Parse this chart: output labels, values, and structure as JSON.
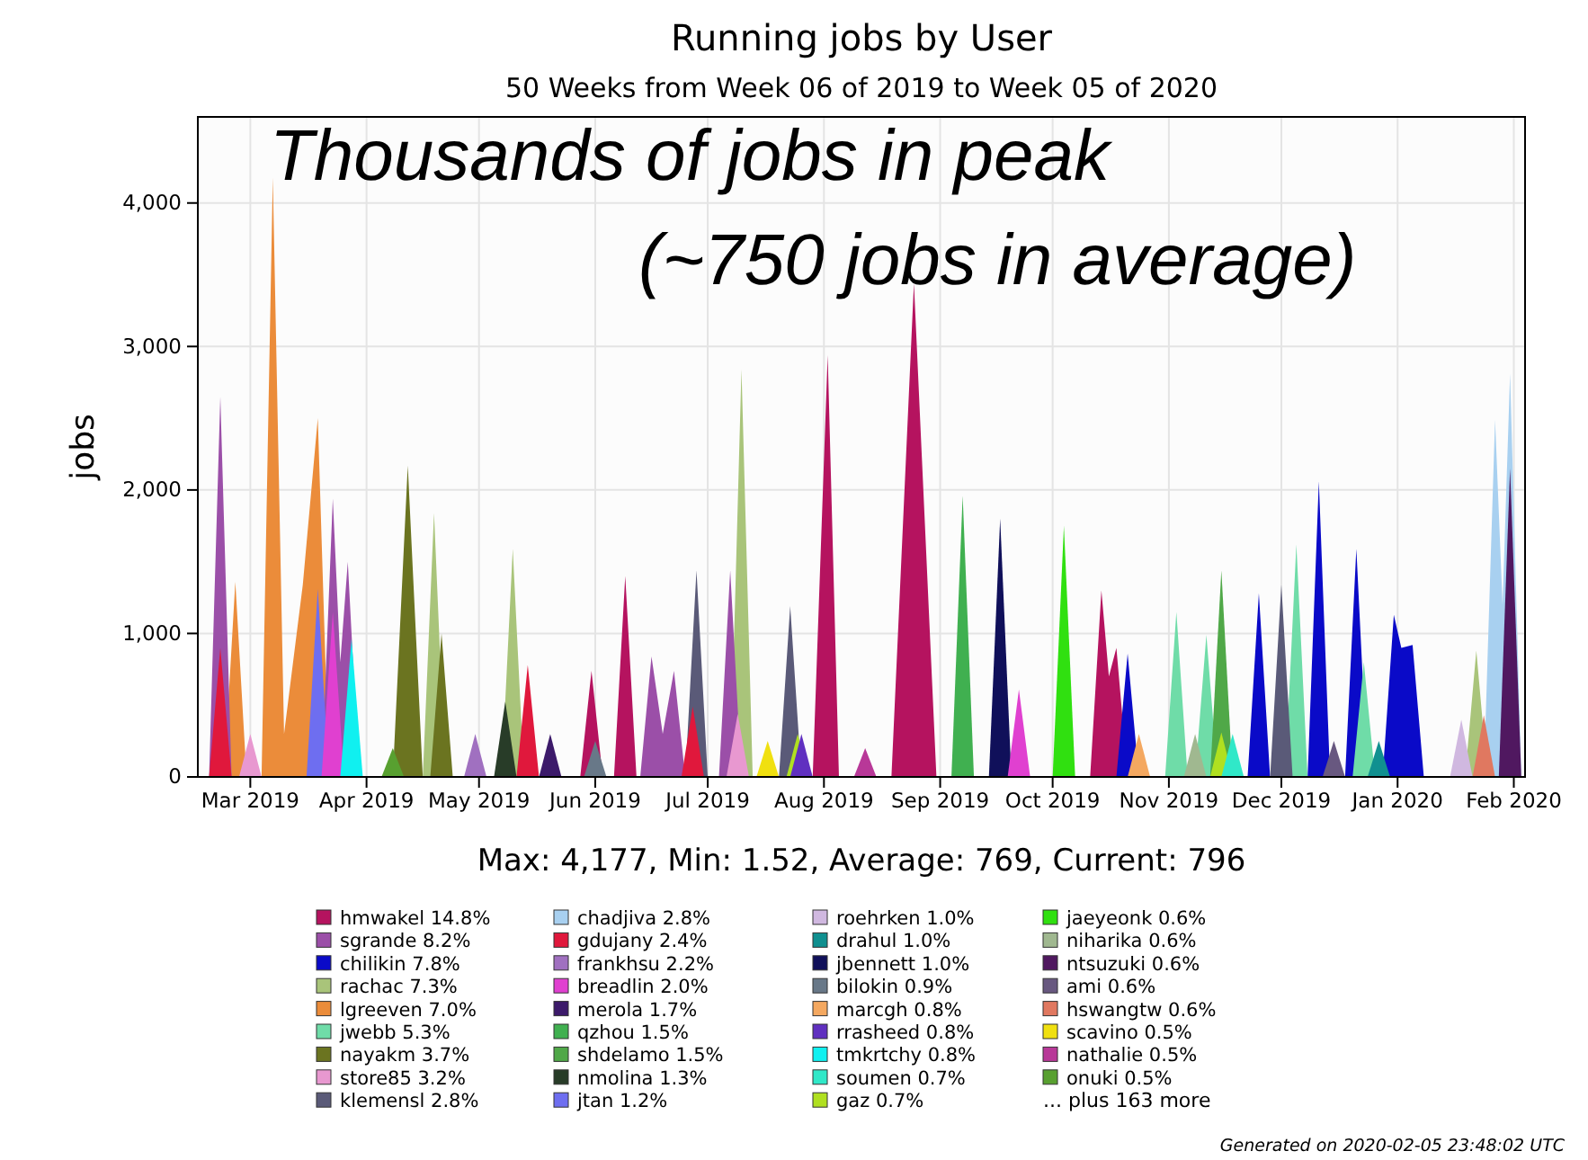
{
  "chart_data": {
    "type": "area",
    "title": "Running jobs by User",
    "subtitle": "50 Weeks from Week 06 of 2019 to Week 05 of 2020",
    "ylabel": "jobs",
    "annotations": [
      "Thousands of jobs in peak",
      "(~750 jobs in average)",
      "Max: 4,177, Min: 1.52, Average: 769, Current: 796",
      "... plus 163 more",
      "Generated on 2020-02-05 23:48:02 UTC"
    ],
    "xlim": [
      "2019-02-15",
      "2020-02-04"
    ],
    "xticks": [
      {
        "value": "2019-03-01",
        "label": "Mar 2019"
      },
      {
        "value": "2019-04-01",
        "label": "Apr 2019"
      },
      {
        "value": "2019-05-01",
        "label": "May 2019"
      },
      {
        "value": "2019-06-01",
        "label": "Jun 2019"
      },
      {
        "value": "2019-07-01",
        "label": "Jul 2019"
      },
      {
        "value": "2019-08-01",
        "label": "Aug 2019"
      },
      {
        "value": "2019-09-01",
        "label": "Sep 2019"
      },
      {
        "value": "2019-10-01",
        "label": "Oct 2019"
      },
      {
        "value": "2019-11-01",
        "label": "Nov 2019"
      },
      {
        "value": "2019-12-01",
        "label": "Dec 2019"
      },
      {
        "value": "2020-01-01",
        "label": "Jan 2020"
      },
      {
        "value": "2020-02-01",
        "label": "Feb 2020"
      }
    ],
    "ylim": [
      0,
      4600
    ],
    "yticks": [
      0,
      {
        "value": 1000,
        "label": "1,000"
      },
      {
        "value": 2000,
        "label": "2,000"
      },
      {
        "value": 3000,
        "label": "3,000"
      },
      {
        "value": 4000,
        "label": "4,000"
      }
    ],
    "grid": true,
    "legend": "bottom",
    "series": [
      {
        "name": "hmwakel 14.8%",
        "color": "#b5135f",
        "x": [
          "2019-05-28",
          "2019-05-31",
          "2019-06-03",
          "2019-06-06",
          "2019-06-09",
          "2019-06-12",
          "2019-07-29",
          "2019-08-02",
          "2019-08-05",
          "2019-08-19",
          "2019-08-25",
          "2019-08-31",
          "2019-10-11",
          "2019-10-14",
          "2019-10-16",
          "2019-10-18",
          "2019-10-21"
        ],
        "values": [
          0,
          740,
          0,
          0,
          1400,
          0,
          0,
          2940,
          0,
          0,
          3440,
          0,
          0,
          1300,
          700,
          900,
          0
        ]
      },
      {
        "name": "sgrande 8.2%",
        "color": "#9b4fa8",
        "x": [
          "2019-02-18",
          "2019-02-21",
          "2019-02-24",
          "2019-03-20",
          "2019-03-23",
          "2019-03-25",
          "2019-03-27",
          "2019-03-30",
          "2019-06-13",
          "2019-06-16",
          "2019-06-19",
          "2019-06-22",
          "2019-06-25",
          "2019-07-04",
          "2019-07-07",
          "2019-07-10"
        ],
        "values": [
          0,
          2650,
          0,
          0,
          1940,
          800,
          1500,
          0,
          0,
          840,
          300,
          740,
          0,
          0,
          1440,
          0
        ]
      },
      {
        "name": "chilikin 7.8%",
        "color": "#0a0ac8",
        "x": [
          "2019-10-18",
          "2019-10-21",
          "2019-10-24",
          "2019-11-22",
          "2019-11-25",
          "2019-11-28",
          "2019-12-08",
          "2019-12-11",
          "2019-12-14",
          "2019-12-18",
          "2019-12-21",
          "2019-12-24",
          "2019-12-28",
          "2019-12-31",
          "2020-01-02",
          "2020-01-05",
          "2020-01-08"
        ],
        "values": [
          0,
          860,
          0,
          0,
          1280,
          0,
          0,
          2060,
          0,
          0,
          1590,
          0,
          0,
          1130,
          900,
          920,
          0
        ]
      },
      {
        "name": "rachac 7.3%",
        "color": "#a9c47a",
        "x": [
          "2019-04-16",
          "2019-04-19",
          "2019-04-22",
          "2019-05-07",
          "2019-05-10",
          "2019-05-13",
          "2019-07-07",
          "2019-07-10",
          "2019-07-13",
          "2020-01-19",
          "2020-01-22",
          "2020-01-25"
        ],
        "values": [
          0,
          1840,
          0,
          0,
          1590,
          0,
          0,
          2840,
          0,
          0,
          880,
          0
        ]
      },
      {
        "name": "lgreeven 7.0%",
        "color": "#eb8c3a",
        "x": [
          "2019-02-22",
          "2019-02-25",
          "2019-02-28",
          "2019-03-04",
          "2019-03-07",
          "2019-03-10",
          "2019-03-15",
          "2019-03-19",
          "2019-03-22"
        ],
        "values": [
          0,
          1360,
          0,
          0,
          4177,
          300,
          1340,
          2500,
          0
        ]
      },
      {
        "name": "jwebb 5.3%",
        "color": "#6fdca8",
        "x": [
          "2019-10-31",
          "2019-11-03",
          "2019-11-06",
          "2019-11-08",
          "2019-11-11",
          "2019-11-14",
          "2019-12-02",
          "2019-12-05",
          "2019-12-08",
          "2019-12-20",
          "2019-12-23",
          "2019-12-26"
        ],
        "values": [
          0,
          1150,
          0,
          0,
          990,
          0,
          0,
          1620,
          0,
          0,
          800,
          0
        ]
      },
      {
        "name": "nayakm 3.7%",
        "color": "#6b7420",
        "x": [
          "2019-04-08",
          "2019-04-12",
          "2019-04-16",
          "2019-04-18",
          "2019-04-21",
          "2019-04-24"
        ],
        "values": [
          0,
          2170,
          0,
          0,
          1000,
          0
        ]
      },
      {
        "name": "store85 3.2%",
        "color": "#e898d0",
        "x": [
          "2019-02-26",
          "2019-03-01",
          "2019-03-04",
          "2019-07-06",
          "2019-07-09",
          "2019-07-12"
        ],
        "values": [
          0,
          300,
          0,
          0,
          440,
          0
        ]
      },
      {
        "name": "klemensl 2.8%",
        "color": "#5a5a78",
        "x": [
          "2019-06-25",
          "2019-06-28",
          "2019-07-01",
          "2019-07-20",
          "2019-07-23",
          "2019-07-26",
          "2019-11-28",
          "2019-12-01",
          "2019-12-04"
        ],
        "values": [
          0,
          1440,
          0,
          0,
          1190,
          0,
          0,
          1340,
          0
        ]
      },
      {
        "name": "chadjiva 2.8%",
        "color": "#a8d0f0",
        "x": [
          "2020-01-24",
          "2020-01-27",
          "2020-01-29",
          "2020-01-31",
          "2020-02-03"
        ],
        "values": [
          0,
          2490,
          1200,
          2810,
          0
        ]
      },
      {
        "name": "gdujany 2.4%",
        "color": "#e0183c",
        "x": [
          "2019-02-18",
          "2019-02-21",
          "2019-02-24",
          "2019-05-11",
          "2019-05-14",
          "2019-05-17",
          "2019-06-24",
          "2019-06-27",
          "2019-06-30"
        ],
        "values": [
          0,
          900,
          0,
          0,
          780,
          0,
          0,
          490,
          0
        ]
      },
      {
        "name": "frankhsu 2.2%",
        "color": "#a070c0",
        "x": [
          "2019-04-27",
          "2019-04-30",
          "2019-05-03"
        ],
        "values": [
          0,
          300,
          0
        ]
      },
      {
        "name": "breadlin 2.0%",
        "color": "#e040d0",
        "x": [
          "2019-03-20",
          "2019-03-23",
          "2019-03-26",
          "2019-09-19",
          "2019-09-22",
          "2019-09-25"
        ],
        "values": [
          0,
          1150,
          0,
          0,
          610,
          0
        ]
      },
      {
        "name": "merola 1.7%",
        "color": "#3c1a6a",
        "x": [
          "2019-05-17",
          "2019-05-20",
          "2019-05-23"
        ],
        "values": [
          0,
          300,
          0
        ]
      },
      {
        "name": "qzhou 1.5%",
        "color": "#40b050",
        "x": [
          "2019-09-04",
          "2019-09-07",
          "2019-09-10"
        ],
        "values": [
          0,
          1960,
          0
        ]
      },
      {
        "name": "shdelamo 1.5%",
        "color": "#50a848",
        "x": [
          "2019-11-12",
          "2019-11-15",
          "2019-11-18"
        ],
        "values": [
          0,
          1440,
          0
        ]
      },
      {
        "name": "nmolina 1.3%",
        "color": "#283c28",
        "x": [
          "2019-05-05",
          "2019-05-08",
          "2019-05-11"
        ],
        "values": [
          0,
          525,
          0
        ]
      },
      {
        "name": "jtan 1.2%",
        "color": "#6e6ef0",
        "x": [
          "2019-03-16",
          "2019-03-19",
          "2019-03-22"
        ],
        "values": [
          0,
          1310,
          0
        ]
      },
      {
        "name": "roehrken 1.0%",
        "color": "#d0b8e0",
        "x": [
          "2020-01-15",
          "2020-01-18",
          "2020-01-21"
        ],
        "values": [
          0,
          400,
          0
        ]
      },
      {
        "name": "drahul 1.0%",
        "color": "#109090",
        "x": [
          "2019-12-24",
          "2019-12-27",
          "2019-12-30"
        ],
        "values": [
          0,
          250,
          0
        ]
      },
      {
        "name": "jbennett 1.0%",
        "color": "#10105a",
        "x": [
          "2019-09-14",
          "2019-09-17",
          "2019-09-20"
        ],
        "values": [
          0,
          1800,
          0
        ]
      },
      {
        "name": "bilokin 0.9%",
        "color": "#687888",
        "x": [
          "2019-05-29",
          "2019-06-01",
          "2019-06-04"
        ],
        "values": [
          0,
          250,
          0
        ]
      },
      {
        "name": "marcgh 0.8%",
        "color": "#f4a860",
        "x": [
          "2019-10-21",
          "2019-10-24",
          "2019-10-27"
        ],
        "values": [
          0,
          300,
          0
        ]
      },
      {
        "name": "rrasheed 0.8%",
        "color": "#6030c0",
        "x": [
          "2019-07-23",
          "2019-07-26",
          "2019-07-29"
        ],
        "values": [
          0,
          300,
          0
        ]
      },
      {
        "name": "tmkrtchy 0.8%",
        "color": "#10f0f0",
        "x": [
          "2019-03-25",
          "2019-03-28",
          "2019-03-31"
        ],
        "values": [
          0,
          960,
          0
        ]
      },
      {
        "name": "soumen 0.7%",
        "color": "#30e8c8",
        "x": [
          "2019-11-15",
          "2019-11-18",
          "2019-11-21"
        ],
        "values": [
          0,
          300,
          0
        ]
      },
      {
        "name": "gaz 0.7%",
        "color": "#b0e020",
        "x": [
          "2019-07-22",
          "2019-07-25",
          "2019-07-28",
          "2019-11-12",
          "2019-11-15",
          "2019-11-18"
        ],
        "values": [
          0,
          300,
          0,
          0,
          310,
          0
        ]
      },
      {
        "name": "jaeyeonk 0.6%",
        "color": "#30e010",
        "x": [
          "2019-10-01",
          "2019-10-04",
          "2019-10-07"
        ],
        "values": [
          0,
          1750,
          0
        ]
      },
      {
        "name": "niharika 0.6%",
        "color": "#a0b890",
        "x": [
          "2019-11-05",
          "2019-11-08",
          "2019-11-11"
        ],
        "values": [
          0,
          300,
          0
        ]
      },
      {
        "name": "ntsuzuki 0.6%",
        "color": "#501860",
        "x": [
          "2020-01-28",
          "2020-01-31",
          "2020-02-03"
        ],
        "values": [
          0,
          2150,
          0
        ]
      },
      {
        "name": "ami 0.6%",
        "color": "#685880",
        "x": [
          "2019-12-12",
          "2019-12-15",
          "2019-12-18"
        ],
        "values": [
          0,
          250,
          0
        ]
      },
      {
        "name": "hswangtw 0.6%",
        "color": "#e07860",
        "x": [
          "2020-01-21",
          "2020-01-24",
          "2020-01-27"
        ],
        "values": [
          0,
          430,
          0
        ]
      },
      {
        "name": "scavino 0.5%",
        "color": "#f0e010",
        "x": [
          "2019-07-14",
          "2019-07-17",
          "2019-07-20"
        ],
        "values": [
          0,
          250,
          0
        ]
      },
      {
        "name": "nathalie 0.5%",
        "color": "#b83898",
        "x": [
          "2019-08-09",
          "2019-08-12",
          "2019-08-15"
        ],
        "values": [
          0,
          200,
          0
        ]
      },
      {
        "name": "onuki 0.5%",
        "color": "#58a030",
        "x": [
          "2019-04-05",
          "2019-04-08",
          "2019-04-11"
        ],
        "values": [
          0,
          200,
          0
        ]
      }
    ]
  }
}
